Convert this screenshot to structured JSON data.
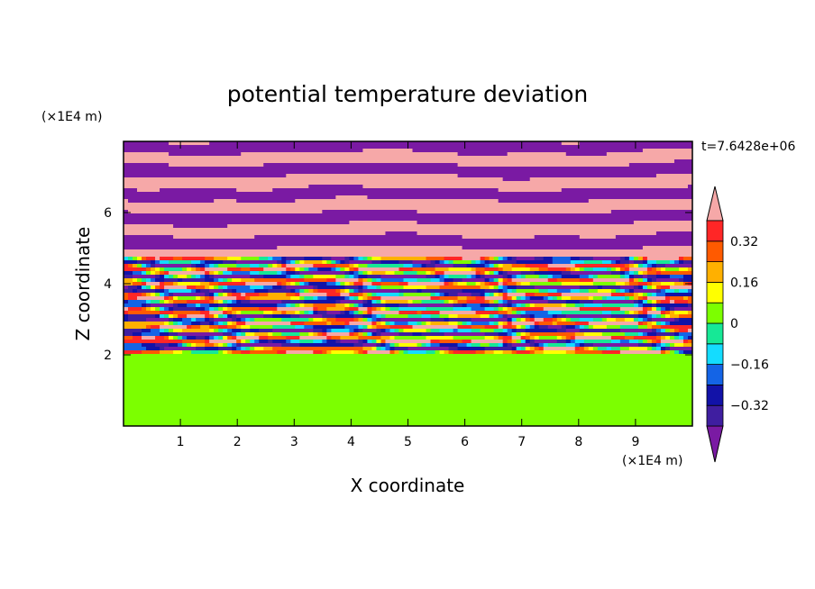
{
  "chart_data": {
    "type": "heatmap",
    "title": "potential temperature deviation",
    "xlabel": "X coordinate",
    "ylabel": "Z coordinate",
    "x_unit": "(×1E4 m)",
    "y_unit": "(×1E4 m)",
    "time_label": "t=7.6428e+06",
    "xlim": [
      0,
      10
    ],
    "ylim": [
      0,
      8
    ],
    "x_ticks": [
      1,
      2,
      3,
      4,
      5,
      6,
      7,
      8,
      9
    ],
    "y_ticks": [
      2,
      4,
      6
    ],
    "colorbar": {
      "levels": [
        -0.4,
        -0.32,
        -0.24,
        -0.16,
        -0.08,
        0,
        0.08,
        0.16,
        0.24,
        0.32,
        0.4
      ],
      "tick_labels": [
        "0.32",
        "0.16",
        "0",
        "−0.16",
        "−0.32"
      ],
      "tick_values": [
        0.32,
        0.16,
        0,
        -0.16,
        -0.32
      ],
      "colors": [
        "#7a1aa3",
        "#3f1ea0",
        "#1212a8",
        "#1464e6",
        "#14dcff",
        "#16e896",
        "#7cff00",
        "#ffff00",
        "#ffb000",
        "#ff5a00",
        "#ff2626",
        "#f6a8a8"
      ],
      "extend": "both"
    },
    "bands": [
      {
        "z_min": 0.0,
        "z_max": 2.0,
        "value": 0.0,
        "pattern": "green background with light-green (+0.08) plumes"
      },
      {
        "z_min": 2.0,
        "z_max": 4.8,
        "value": null,
        "pattern": "mixed layer, values ranging -0.4 to +0.4"
      },
      {
        "z_min": 4.8,
        "z_max": 8.0,
        "value": null,
        "pattern": "alternating +0.4 (pink) and -0.4 (purple) layers"
      }
    ]
  }
}
